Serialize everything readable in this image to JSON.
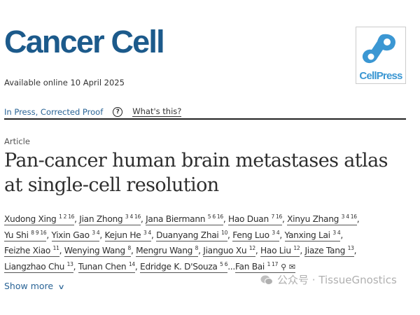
{
  "journal": {
    "name": "Cancer Cell",
    "publisher_logo_text": "CellPress",
    "brand_color": "#1c5a8b",
    "logo_color": "#3b97d3"
  },
  "available": "Available online 10 April 2025",
  "status": {
    "label": "In Press, Corrected Proof",
    "help_icon": "question-circle-icon",
    "whats_this": "What's this?"
  },
  "article_type": "Article",
  "title": "Pan-cancer human brain metastases atlas at single-cell resolution",
  "authors": [
    [
      {
        "name": "Xudong Xing",
        "sup": "1 2 16"
      },
      {
        "name": "Jian Zhong",
        "sup": "3 4 16"
      },
      {
        "name": "Jana Biermann",
        "sup": "5 6 16"
      },
      {
        "name": "Hao Duan",
        "sup": "7 16"
      },
      {
        "name": "Xinyu Zhang",
        "sup": "3 4 16"
      }
    ],
    [
      {
        "name": "Yu Shi",
        "sup": "8 9 16"
      },
      {
        "name": "Yixin Gao",
        "sup": "3 4"
      },
      {
        "name": "Kejun He",
        "sup": "3 4"
      },
      {
        "name": "Duanyang Zhai",
        "sup": "10"
      },
      {
        "name": "Feng Luo",
        "sup": "3 4"
      },
      {
        "name": "Yanxing Lai",
        "sup": "3 4"
      }
    ],
    [
      {
        "name": "Feizhe Xiao",
        "sup": "11"
      },
      {
        "name": "Wenying Wang",
        "sup": "8"
      },
      {
        "name": "Mengru Wang",
        "sup": "8"
      },
      {
        "name": "Jianguo Xu",
        "sup": "12"
      },
      {
        "name": "Hao Liu",
        "sup": "12"
      },
      {
        "name": "Jiaze Tang",
        "sup": "13"
      }
    ],
    [
      {
        "name": "Liangzhao Chu",
        "sup": "13"
      },
      {
        "name": "Tunan Chen",
        "sup": "14"
      },
      {
        "name": "Edridge K. D'Souza",
        "sup": "5 6"
      },
      {
        "name": "Fan Bai",
        "sup": "1 17",
        "ellipsis": "...",
        "icons": [
          "person-icon",
          "envelope-icon"
        ]
      }
    ]
  ],
  "show_more": "Show more",
  "watermark": "公众号 · TissueGnostics"
}
